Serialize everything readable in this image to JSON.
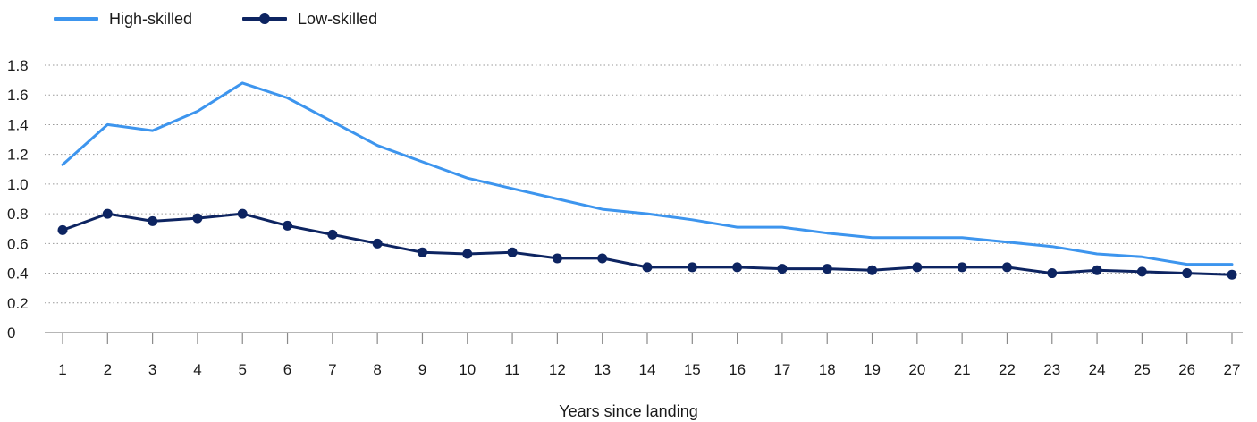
{
  "chart_data": {
    "type": "line",
    "title": "",
    "xlabel": "Years since landing",
    "ylabel": "",
    "x": [
      1,
      2,
      3,
      4,
      5,
      6,
      7,
      8,
      9,
      10,
      11,
      12,
      13,
      14,
      15,
      16,
      17,
      18,
      19,
      20,
      21,
      22,
      23,
      24,
      25,
      26,
      27
    ],
    "ylim": [
      0,
      1.8
    ],
    "y_ticks": [
      "0",
      "0.2",
      "0.4",
      "0.6",
      "0.8",
      "1.0",
      "1.2",
      "1.4",
      "1.6",
      "1.8"
    ],
    "grid": "horizontal dotted",
    "legend_position": "top-left",
    "series": [
      {
        "name": "High-skilled",
        "color": "#3d95ee",
        "markers": false,
        "values": [
          1.13,
          1.4,
          1.36,
          1.49,
          1.68,
          1.58,
          1.42,
          1.26,
          1.15,
          1.04,
          0.97,
          0.9,
          0.83,
          0.8,
          0.76,
          0.71,
          0.71,
          0.67,
          0.64,
          0.64,
          0.64,
          0.61,
          0.58,
          0.53,
          0.51,
          0.46,
          0.46
        ]
      },
      {
        "name": "Low-skilled",
        "color": "#0d2461",
        "markers": true,
        "values": [
          0.69,
          0.8,
          0.75,
          0.77,
          0.8,
          0.72,
          0.66,
          0.6,
          0.54,
          0.53,
          0.54,
          0.5,
          0.5,
          0.44,
          0.44,
          0.44,
          0.43,
          0.43,
          0.42,
          0.44,
          0.44,
          0.44,
          0.4,
          0.42,
          0.41,
          0.4,
          0.39
        ]
      }
    ]
  }
}
